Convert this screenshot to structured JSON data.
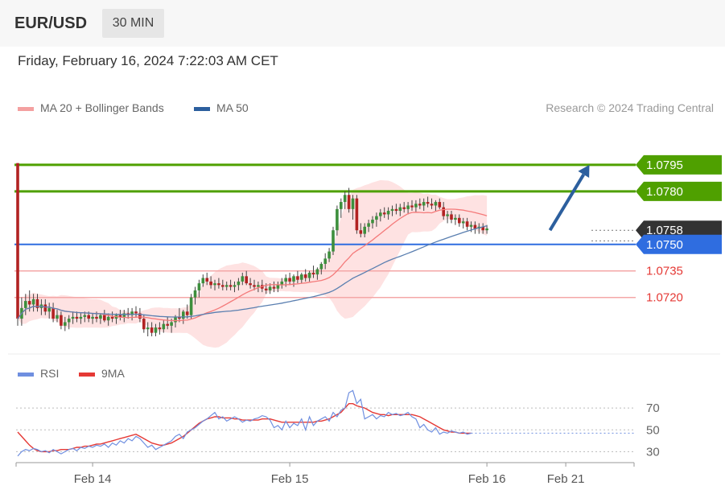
{
  "header": {
    "pair": "EUR/USD",
    "timeframe": "30 MIN",
    "datetime": "Friday, February 16, 2024 7:22:03 AM CET"
  },
  "legend": {
    "bollinger_label": "MA 20 + Bollinger Bands",
    "ma50_label": "MA 50",
    "rsi_label": "RSI",
    "rsi_ma_label": "9MA",
    "credit": "Research © 2024 Trading Central"
  },
  "colors": {
    "resistance": "#4fa000",
    "pivot": "#2f6de0",
    "support": "#e53935",
    "bands": "#fdd8d8",
    "ma20": "#f47a7a",
    "ma50": "#5a7fb0",
    "arrow": "#2c5f9e",
    "bull": "#3d8f3d",
    "bear": "#b22222",
    "rsi": "#6f8fe0",
    "rsi_ma": "#e53935"
  },
  "chart_data": [
    {
      "type": "candlestick",
      "xlabel": "",
      "ylabel": "",
      "ylim": [
        1.0688,
        1.082
      ],
      "x_ticks": [
        {
          "label": "Feb 14",
          "index": 19
        },
        {
          "label": "Feb 15",
          "index": 69
        },
        {
          "label": "Feb 16",
          "index": 119
        },
        {
          "label": "Feb 21",
          "index": 139
        }
      ],
      "levels": [
        {
          "value": 1.0795,
          "label": "1.0795",
          "kind": "resistance"
        },
        {
          "value": 1.078,
          "label": "1.0780",
          "kind": "resistance"
        },
        {
          "value": 1.0758,
          "label": "1.0758",
          "kind": "current"
        },
        {
          "value": 1.075,
          "label": "1.0750",
          "kind": "pivot"
        },
        {
          "value": 1.0735,
          "label": "1.0735",
          "kind": "support"
        },
        {
          "value": 1.072,
          "label": "1.0720",
          "kind": "support"
        }
      ],
      "forecast_arrow": {
        "from_index": 135,
        "from_value": 1.0758,
        "to_index": 145,
        "to_value": 1.0795
      },
      "ohlc": [
        [
          1.0796,
          1.0796,
          1.0704,
          1.0708
        ],
        [
          1.0708,
          1.072,
          1.0704,
          1.0714
        ],
        [
          1.0714,
          1.0722,
          1.071,
          1.0718
        ],
        [
          1.0718,
          1.0724,
          1.0712,
          1.0716
        ],
        [
          1.0716,
          1.0722,
          1.0712,
          1.0719
        ],
        [
          1.0719,
          1.0722,
          1.0712,
          1.0714
        ],
        [
          1.0714,
          1.0719,
          1.071,
          1.0716
        ],
        [
          1.0716,
          1.0719,
          1.071,
          1.0712
        ],
        [
          1.0712,
          1.0717,
          1.0708,
          1.0714
        ],
        [
          1.0714,
          1.0717,
          1.0706,
          1.0708
        ],
        [
          1.0708,
          1.0713,
          1.0706,
          1.071
        ],
        [
          1.071,
          1.0712,
          1.0702,
          1.0704
        ],
        [
          1.0704,
          1.0709,
          1.0701,
          1.0706
        ],
        [
          1.0706,
          1.071,
          1.0702,
          1.0708
        ],
        [
          1.0708,
          1.0712,
          1.0705,
          1.0709
        ],
        [
          1.0709,
          1.0712,
          1.0706,
          1.0708
        ],
        [
          1.0708,
          1.0711,
          1.0705,
          1.0709
        ],
        [
          1.0709,
          1.0712,
          1.0706,
          1.071
        ],
        [
          1.071,
          1.0712,
          1.0706,
          1.0708
        ],
        [
          1.0708,
          1.0711,
          1.0705,
          1.0709
        ],
        [
          1.0709,
          1.0712,
          1.0706,
          1.0708
        ],
        [
          1.0708,
          1.0711,
          1.0705,
          1.071
        ],
        [
          1.071,
          1.0713,
          1.0706,
          1.0707
        ],
        [
          1.0707,
          1.0711,
          1.0704,
          1.0709
        ],
        [
          1.0709,
          1.0712,
          1.0706,
          1.0708
        ],
        [
          1.0708,
          1.0711,
          1.0705,
          1.071
        ],
        [
          1.071,
          1.0713,
          1.0707,
          1.0709
        ],
        [
          1.0709,
          1.0713,
          1.0706,
          1.0711
        ],
        [
          1.0711,
          1.0714,
          1.0708,
          1.071
        ],
        [
          1.071,
          1.0714,
          1.0707,
          1.0712
        ],
        [
          1.0712,
          1.0715,
          1.0709,
          1.0711
        ],
        [
          1.0711,
          1.0714,
          1.0706,
          1.0708
        ],
        [
          1.0708,
          1.071,
          1.07,
          1.0702
        ],
        [
          1.0702,
          1.0706,
          1.0698,
          1.0703
        ],
        [
          1.0703,
          1.0706,
          1.0698,
          1.07
        ],
        [
          1.07,
          1.0705,
          1.0698,
          1.0703
        ],
        [
          1.0703,
          1.0706,
          1.0699,
          1.0702
        ],
        [
          1.0702,
          1.0707,
          1.07,
          1.0705
        ],
        [
          1.0705,
          1.0709,
          1.0702,
          1.0704
        ],
        [
          1.0704,
          1.0708,
          1.07,
          1.0706
        ],
        [
          1.0706,
          1.071,
          1.0703,
          1.0709
        ],
        [
          1.0709,
          1.0714,
          1.0706,
          1.0708
        ],
        [
          1.0708,
          1.0713,
          1.0705,
          1.0712
        ],
        [
          1.0712,
          1.0716,
          1.0708,
          1.071
        ],
        [
          1.071,
          1.0722,
          1.0708,
          1.072
        ],
        [
          1.072,
          1.0726,
          1.0716,
          1.0724
        ],
        [
          1.0724,
          1.073,
          1.072,
          1.0728
        ],
        [
          1.0728,
          1.0733,
          1.0726,
          1.0731
        ],
        [
          1.0731,
          1.0734,
          1.0727,
          1.0729
        ],
        [
          1.0729,
          1.0732,
          1.0725,
          1.0727
        ],
        [
          1.0727,
          1.073,
          1.0724,
          1.0728
        ],
        [
          1.0728,
          1.0731,
          1.0725,
          1.0727
        ],
        [
          1.0727,
          1.073,
          1.0724,
          1.0726
        ],
        [
          1.0726,
          1.0729,
          1.0724,
          1.0727
        ],
        [
          1.0727,
          1.073,
          1.0724,
          1.0726
        ],
        [
          1.0726,
          1.0729,
          1.0723,
          1.0727
        ],
        [
          1.0727,
          1.0731,
          1.0724,
          1.0729
        ],
        [
          1.0729,
          1.0734,
          1.0727,
          1.0732
        ],
        [
          1.0732,
          1.0735,
          1.0727,
          1.0728
        ],
        [
          1.0728,
          1.0731,
          1.0725,
          1.0727
        ],
        [
          1.0727,
          1.073,
          1.0724,
          1.0726
        ],
        [
          1.0726,
          1.0729,
          1.0723,
          1.0727
        ],
        [
          1.0727,
          1.073,
          1.0723,
          1.0725
        ],
        [
          1.0725,
          1.0728,
          1.0722,
          1.0724
        ],
        [
          1.0724,
          1.0728,
          1.0722,
          1.0726
        ],
        [
          1.0726,
          1.0729,
          1.0723,
          1.0725
        ],
        [
          1.0725,
          1.0729,
          1.0723,
          1.0727
        ],
        [
          1.0727,
          1.0731,
          1.0725,
          1.0729
        ],
        [
          1.0729,
          1.0733,
          1.0726,
          1.0731
        ],
        [
          1.0731,
          1.0734,
          1.0727,
          1.0729
        ],
        [
          1.0729,
          1.0733,
          1.0726,
          1.0732
        ],
        [
          1.0732,
          1.0735,
          1.0728,
          1.073
        ],
        [
          1.073,
          1.0734,
          1.0728,
          1.0733
        ],
        [
          1.0733,
          1.0736,
          1.0729,
          1.0731
        ],
        [
          1.0731,
          1.0735,
          1.0729,
          1.0734
        ],
        [
          1.0734,
          1.0738,
          1.0731,
          1.0733
        ],
        [
          1.0733,
          1.0737,
          1.073,
          1.0736
        ],
        [
          1.0736,
          1.074,
          1.0733,
          1.0739
        ],
        [
          1.0739,
          1.0745,
          1.0736,
          1.0742
        ],
        [
          1.0742,
          1.0748,
          1.074,
          1.0746
        ],
        [
          1.0746,
          1.076,
          1.0744,
          1.0758
        ],
        [
          1.0758,
          1.0772,
          1.0755,
          1.077
        ],
        [
          1.077,
          1.0776,
          1.0765,
          1.0774
        ],
        [
          1.0774,
          1.078,
          1.077,
          1.0778
        ],
        [
          1.0778,
          1.0782,
          1.0768,
          1.077
        ],
        [
          1.077,
          1.0778,
          1.0764,
          1.0776
        ],
        [
          1.0776,
          1.0778,
          1.0756,
          1.0758
        ],
        [
          1.0758,
          1.0762,
          1.0754,
          1.0756
        ],
        [
          1.0756,
          1.0762,
          1.0754,
          1.076
        ],
        [
          1.076,
          1.0764,
          1.0757,
          1.0762
        ],
        [
          1.0762,
          1.0766,
          1.0759,
          1.0764
        ],
        [
          1.0764,
          1.0768,
          1.076,
          1.0766
        ],
        [
          1.0766,
          1.077,
          1.0763,
          1.0768
        ],
        [
          1.0768,
          1.0771,
          1.0765,
          1.0767
        ],
        [
          1.0767,
          1.0771,
          1.0764,
          1.0769
        ],
        [
          1.0769,
          1.0772,
          1.0766,
          1.077
        ],
        [
          1.077,
          1.0773,
          1.0767,
          1.0769
        ],
        [
          1.0769,
          1.0773,
          1.0766,
          1.0771
        ],
        [
          1.0771,
          1.0774,
          1.0768,
          1.077
        ],
        [
          1.077,
          1.0774,
          1.0767,
          1.0772
        ],
        [
          1.0772,
          1.0775,
          1.0769,
          1.0771
        ],
        [
          1.0771,
          1.0775,
          1.0768,
          1.0773
        ],
        [
          1.0773,
          1.0776,
          1.077,
          1.0772
        ],
        [
          1.0772,
          1.0776,
          1.0769,
          1.0774
        ],
        [
          1.0774,
          1.0777,
          1.0771,
          1.0773
        ],
        [
          1.0773,
          1.0776,
          1.077,
          1.0772
        ],
        [
          1.0772,
          1.0775,
          1.0769,
          1.0774
        ],
        [
          1.0774,
          1.0776,
          1.077,
          1.0771
        ],
        [
          1.0771,
          1.0774,
          1.0764,
          1.0766
        ],
        [
          1.0766,
          1.0769,
          1.0762,
          1.0767
        ],
        [
          1.0767,
          1.0769,
          1.0762,
          1.0764
        ],
        [
          1.0764,
          1.0767,
          1.0761,
          1.0765
        ],
        [
          1.0765,
          1.0767,
          1.076,
          1.0762
        ],
        [
          1.0762,
          1.0765,
          1.0759,
          1.0763
        ],
        [
          1.0763,
          1.0765,
          1.0758,
          1.076
        ],
        [
          1.076,
          1.0763,
          1.0757,
          1.0761
        ],
        [
          1.0761,
          1.0763,
          1.0756,
          1.0759
        ],
        [
          1.0759,
          1.0762,
          1.0756,
          1.076
        ],
        [
          1.076,
          1.0762,
          1.0756,
          1.0758
        ],
        [
          1.0758,
          1.0761,
          1.0756,
          1.0759
        ]
      ]
    },
    {
      "type": "line",
      "title": "",
      "ylim": [
        20,
        90
      ],
      "y_ticks": [
        70,
        50,
        30
      ],
      "grid": true,
      "series": [
        {
          "name": "RSI",
          "values": [
            26,
            30,
            32,
            31,
            33,
            32,
            30,
            31,
            29,
            32,
            30,
            28,
            30,
            32,
            33,
            31,
            34,
            33,
            35,
            34,
            36,
            35,
            37,
            34,
            38,
            36,
            40,
            38,
            42,
            40,
            44,
            42,
            38,
            34,
            36,
            32,
            34,
            36,
            38,
            40,
            44,
            46,
            42,
            48,
            50,
            52,
            55,
            58,
            60,
            63,
            66,
            60,
            62,
            58,
            60,
            62,
            60,
            57,
            59,
            58,
            60,
            61,
            63,
            62,
            59,
            52,
            54,
            50,
            58,
            52,
            56,
            54,
            60,
            50,
            62,
            54,
            58,
            60,
            62,
            58,
            66,
            62,
            68,
            70,
            84,
            86,
            74,
            78,
            60,
            62,
            64,
            60,
            63,
            62,
            66,
            64,
            65,
            63,
            64,
            66,
            62,
            60,
            52,
            55,
            50,
            48,
            52,
            46,
            48,
            47,
            49,
            48,
            47,
            48,
            46,
            47
          ]
        },
        {
          "name": "9MA",
          "values": [
            48,
            44,
            40,
            36,
            33,
            31,
            30,
            30,
            30,
            31,
            31,
            32,
            32,
            32,
            33,
            34,
            34,
            35,
            35,
            36,
            37,
            37,
            38,
            39,
            40,
            41,
            42,
            43,
            44,
            45,
            46,
            44,
            42,
            40,
            38,
            37,
            36,
            36,
            37,
            38,
            40,
            42,
            44,
            47,
            50,
            53,
            56,
            58,
            60,
            61,
            62,
            62,
            61,
            61,
            61,
            60,
            60,
            59,
            59,
            59,
            59,
            59,
            60,
            60,
            60,
            59,
            58,
            57,
            57,
            57,
            57,
            57,
            57,
            57,
            57,
            57,
            58,
            58,
            59,
            60,
            62,
            64,
            66,
            70,
            74,
            74,
            72,
            71,
            70,
            68,
            66,
            65,
            64,
            64,
            63,
            64,
            64,
            64,
            64,
            64,
            64,
            63,
            62,
            60,
            58,
            56,
            54,
            52,
            50,
            49,
            48,
            48,
            47,
            47,
            47,
            47
          ]
        }
      ]
    }
  ]
}
